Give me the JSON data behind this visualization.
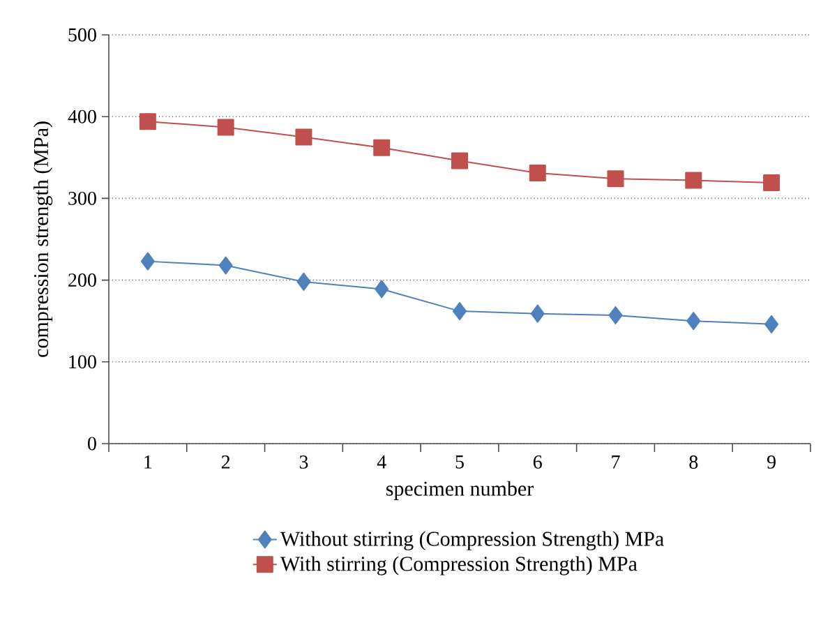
{
  "chart_data": {
    "type": "line",
    "xlabel": "specimen number",
    "ylabel": "compression strength (MPa)",
    "categories": [
      "1",
      "2",
      "3",
      "4",
      "5",
      "6",
      "7",
      "8",
      "9"
    ],
    "series": [
      {
        "name": "Without stirring (Compression Strength) MPa",
        "color": "#4f81bd",
        "marker": "diamond",
        "values": [
          223,
          218,
          198,
          189,
          162,
          159,
          157,
          150,
          146
        ]
      },
      {
        "name": "With stirring (Compression Strength) MPa",
        "color": "#c0504d",
        "marker": "square",
        "values": [
          394,
          387,
          375,
          362,
          346,
          331,
          324,
          322,
          319
        ]
      }
    ],
    "ylim": [
      0,
      500
    ],
    "yticks": [
      0,
      100,
      200,
      300,
      400,
      500
    ],
    "grid": "y",
    "legend": "bottom",
    "line_style": "solid"
  }
}
